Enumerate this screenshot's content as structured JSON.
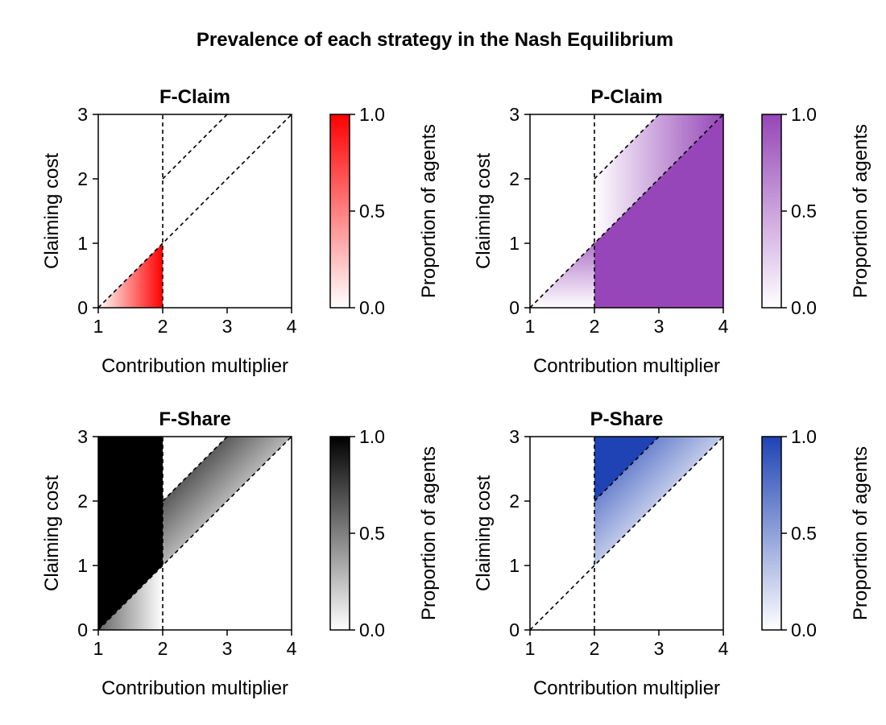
{
  "figure": {
    "title": "Prevalence of each strategy in the Nash Equilibrium"
  },
  "chart_data": [
    {
      "type": "heatmap",
      "title": "F-Claim",
      "xlabel": "Contribution multiplier",
      "ylabel": "Claiming cost",
      "xlim": [
        1,
        4
      ],
      "ylim": [
        0,
        3
      ],
      "xticks": [
        "1",
        "2",
        "3",
        "4"
      ],
      "yticks": [
        "0",
        "1",
        "2",
        "3"
      ],
      "colorbar": {
        "label": "Proportion of agents",
        "ticks": [
          "0.0",
          "0.5",
          "1.0"
        ],
        "range": [
          0,
          1
        ],
        "color": "#ff0000"
      },
      "regions": [
        {
          "vertices": [
            [
              1,
              0
            ],
            [
              2,
              0
            ],
            [
              2,
              1
            ]
          ],
          "value": "gradient",
          "from_value": 0,
          "to_value": 1,
          "direction": "left-to-right"
        }
      ],
      "reference_lines": [
        {
          "points": [
            [
              2,
              0
            ],
            [
              2,
              3
            ]
          ],
          "style": "dashed"
        },
        {
          "points": [
            [
              1,
              0
            ],
            [
              4,
              3
            ]
          ],
          "style": "dashed"
        },
        {
          "points": [
            [
              2,
              2
            ],
            [
              3,
              3
            ]
          ],
          "style": "dashed"
        }
      ]
    },
    {
      "type": "heatmap",
      "title": "P-Claim",
      "xlabel": "Contribution multiplier",
      "ylabel": "Claiming cost",
      "xlim": [
        1,
        4
      ],
      "ylim": [
        0,
        3
      ],
      "xticks": [
        "1",
        "2",
        "3",
        "4"
      ],
      "yticks": [
        "0",
        "1",
        "2",
        "3"
      ],
      "colorbar": {
        "label": "Proportion of agents",
        "ticks": [
          "0.0",
          "0.5",
          "1.0"
        ],
        "range": [
          0,
          1
        ],
        "color": "#9646b8"
      },
      "regions": [
        {
          "vertices": [
            [
              2,
              0
            ],
            [
              4,
              0
            ],
            [
              4,
              3
            ],
            [
              2,
              1
            ]
          ],
          "value": 1
        },
        {
          "vertices": [
            [
              2,
              1
            ],
            [
              2,
              2
            ],
            [
              3,
              3
            ],
            [
              4,
              3
            ]
          ],
          "value": "gradient",
          "from_value": 0,
          "to_value": 1,
          "direction": "left-to-right"
        },
        {
          "vertices": [
            [
              1,
              0
            ],
            [
              2,
              0
            ],
            [
              2,
              1
            ]
          ],
          "value": "gradient",
          "from_value": 0,
          "to_value": 0.75,
          "direction": "bottom-to-top"
        }
      ],
      "reference_lines": [
        {
          "points": [
            [
              2,
              0
            ],
            [
              2,
              3
            ]
          ],
          "style": "dashed"
        },
        {
          "points": [
            [
              1,
              0
            ],
            [
              4,
              3
            ]
          ],
          "style": "dashed"
        },
        {
          "points": [
            [
              2,
              2
            ],
            [
              3,
              3
            ]
          ],
          "style": "dashed"
        }
      ]
    },
    {
      "type": "heatmap",
      "title": "F-Share",
      "xlabel": "Contribution multiplier",
      "ylabel": "Claiming cost",
      "xlim": [
        1,
        4
      ],
      "ylim": [
        0,
        3
      ],
      "xticks": [
        "1",
        "2",
        "3",
        "4"
      ],
      "yticks": [
        "0",
        "1",
        "2",
        "3"
      ],
      "colorbar": {
        "label": "Proportion of agents",
        "ticks": [
          "0.0",
          "0.5",
          "1.0"
        ],
        "range": [
          0,
          1
        ],
        "color": "#000000"
      },
      "regions": [
        {
          "vertices": [
            [
              1,
              0
            ],
            [
              1,
              3
            ],
            [
              2,
              3
            ],
            [
              2,
              1
            ]
          ],
          "value": 1
        },
        {
          "vertices": [
            [
              1,
              0
            ],
            [
              2,
              0
            ],
            [
              2,
              1
            ]
          ],
          "value": "gradient",
          "from_value": 0.6,
          "to_value": 0,
          "direction": "left-to-right"
        },
        {
          "vertices": [
            [
              2,
              1
            ],
            [
              2,
              2
            ],
            [
              3,
              3
            ],
            [
              4,
              3
            ]
          ],
          "value": "gradient",
          "from_value": 1,
          "to_value": 0,
          "direction": "perpendicular-to-diagonal"
        }
      ],
      "reference_lines": [
        {
          "points": [
            [
              2,
              0
            ],
            [
              2,
              3
            ]
          ],
          "style": "dashed"
        },
        {
          "points": [
            [
              1,
              0
            ],
            [
              4,
              3
            ]
          ],
          "style": "dashed"
        },
        {
          "points": [
            [
              2,
              2
            ],
            [
              3,
              3
            ]
          ],
          "style": "dashed"
        }
      ]
    },
    {
      "type": "heatmap",
      "title": "P-Share",
      "xlabel": "Contribution multiplier",
      "ylabel": "Claiming cost",
      "xlim": [
        1,
        4
      ],
      "ylim": [
        0,
        3
      ],
      "xticks": [
        "1",
        "2",
        "3",
        "4"
      ],
      "yticks": [
        "0",
        "1",
        "2",
        "3"
      ],
      "colorbar": {
        "label": "Proportion of agents",
        "ticks": [
          "0.0",
          "0.5",
          "1.0"
        ],
        "range": [
          0,
          1
        ],
        "color": "#1f43b4"
      },
      "regions": [
        {
          "vertices": [
            [
              2,
              2
            ],
            [
              2,
              3
            ],
            [
              3,
              3
            ]
          ],
          "value": 1
        },
        {
          "vertices": [
            [
              2,
              1
            ],
            [
              2,
              2
            ],
            [
              3,
              3
            ],
            [
              4,
              3
            ]
          ],
          "value": "gradient",
          "from_value": 1,
          "to_value": 0,
          "direction": "perpendicular-to-diagonal"
        }
      ],
      "reference_lines": [
        {
          "points": [
            [
              2,
              0
            ],
            [
              2,
              3
            ]
          ],
          "style": "dashed"
        },
        {
          "points": [
            [
              1,
              0
            ],
            [
              4,
              3
            ]
          ],
          "style": "dashed"
        },
        {
          "points": [
            [
              2,
              2
            ],
            [
              3,
              3
            ]
          ],
          "style": "dashed"
        }
      ]
    }
  ]
}
